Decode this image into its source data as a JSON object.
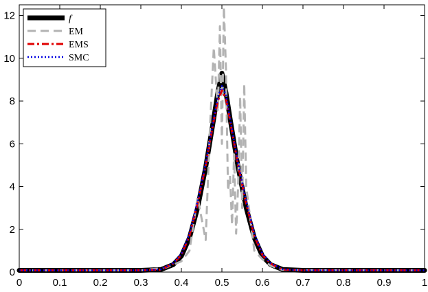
{
  "chart_data": {
    "type": "line",
    "title": "",
    "xlabel": "",
    "ylabel": "",
    "xlim": [
      0,
      1
    ],
    "ylim": [
      0,
      12.5
    ],
    "xticks": [
      0,
      0.1,
      0.2,
      0.3,
      0.4,
      0.5,
      0.6,
      0.7,
      0.8,
      0.9,
      1
    ],
    "xtick_labels": [
      "0",
      "0.1",
      "0.2",
      "0.3",
      "0.4",
      "0.5",
      "0.6",
      "0.7",
      "0.8",
      "0.9",
      "1"
    ],
    "yticks": [
      0,
      2,
      4,
      6,
      8,
      10,
      12
    ],
    "ytick_labels": [
      "0",
      "2",
      "4",
      "6",
      "8",
      "10",
      "12"
    ],
    "grid": false,
    "legend_position": "top-left",
    "series": [
      {
        "name": "f",
        "color": "#000000",
        "style": "solid",
        "x": [
          0,
          0.1,
          0.2,
          0.3,
          0.35,
          0.38,
          0.4,
          0.42,
          0.44,
          0.46,
          0.48,
          0.49,
          0.5,
          0.51,
          0.52,
          0.54,
          0.56,
          0.58,
          0.6,
          0.62,
          0.65,
          0.7,
          0.8,
          0.9,
          1
        ],
        "y": [
          0.08,
          0.08,
          0.08,
          0.08,
          0.12,
          0.35,
          0.75,
          1.6,
          3.0,
          4.9,
          7.2,
          8.4,
          9.3,
          8.4,
          7.2,
          4.9,
          3.0,
          1.6,
          0.75,
          0.35,
          0.12,
          0.08,
          0.08,
          0.08,
          0.08
        ]
      },
      {
        "name": "EM",
        "color": "#b3b3b3",
        "style": "dashed",
        "x": [
          0,
          0.3,
          0.36,
          0.4,
          0.42,
          0.44,
          0.46,
          0.47,
          0.48,
          0.49,
          0.495,
          0.5,
          0.505,
          0.51,
          0.515,
          0.52,
          0.525,
          0.53,
          0.535,
          0.54,
          0.545,
          0.55,
          0.555,
          0.56,
          0.57,
          0.58,
          0.6,
          0.62,
          0.65,
          1
        ],
        "y": [
          0.08,
          0.08,
          0.2,
          0.5,
          1.0,
          3.5,
          1.5,
          6.5,
          10.5,
          7.5,
          11.5,
          6.0,
          12.4,
          9.5,
          3.8,
          4.5,
          2.2,
          5.5,
          1.8,
          4.0,
          8.2,
          3.0,
          8.8,
          4.0,
          2.5,
          1.0,
          0.6,
          0.3,
          0.1,
          0.08
        ]
      },
      {
        "name": "EMS",
        "color": "#e00000",
        "style": "dashdot",
        "x": [
          0,
          0.1,
          0.2,
          0.3,
          0.35,
          0.38,
          0.4,
          0.42,
          0.44,
          0.46,
          0.48,
          0.49,
          0.5,
          0.51,
          0.52,
          0.54,
          0.56,
          0.58,
          0.6,
          0.62,
          0.65,
          0.7,
          0.8,
          0.9,
          1
        ],
        "y": [
          0.08,
          0.08,
          0.08,
          0.08,
          0.12,
          0.4,
          0.8,
          1.7,
          3.2,
          5.0,
          7.1,
          8.0,
          8.5,
          8.1,
          7.1,
          5.0,
          3.2,
          1.7,
          0.8,
          0.4,
          0.12,
          0.08,
          0.08,
          0.08,
          0.08
        ]
      },
      {
        "name": "SMC",
        "color": "#0000e0",
        "style": "dotted",
        "x": [
          0,
          0.1,
          0.2,
          0.3,
          0.35,
          0.38,
          0.4,
          0.42,
          0.44,
          0.46,
          0.48,
          0.49,
          0.5,
          0.51,
          0.52,
          0.54,
          0.56,
          0.58,
          0.6,
          0.62,
          0.65,
          0.7,
          0.8,
          0.9,
          1
        ],
        "y": [
          0.08,
          0.08,
          0.08,
          0.08,
          0.13,
          0.42,
          0.85,
          1.8,
          3.3,
          5.1,
          7.2,
          8.2,
          8.7,
          8.3,
          7.2,
          5.1,
          3.3,
          1.8,
          0.85,
          0.42,
          0.13,
          0.08,
          0.08,
          0.08,
          0.08
        ]
      }
    ]
  }
}
